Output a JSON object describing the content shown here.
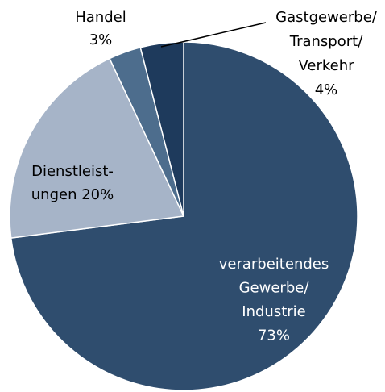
{
  "chart_data": {
    "type": "pie",
    "categories": [
      [
        "verarbeitendes",
        "Gewerbe/",
        "Industrie"
      ],
      [
        "Dienstleist-",
        "ungen"
      ],
      [
        "Handel"
      ],
      [
        "Gastgewerbe/",
        "Transport/",
        "Verkehr"
      ]
    ],
    "values": [
      73,
      20,
      3,
      4
    ],
    "value_labels": [
      "73%",
      "20%",
      "3%",
      "4%"
    ],
    "colors": [
      "#2f4d6e",
      "#a6b4c8",
      "#4d6d8d",
      "#1e3a5c"
    ]
  }
}
